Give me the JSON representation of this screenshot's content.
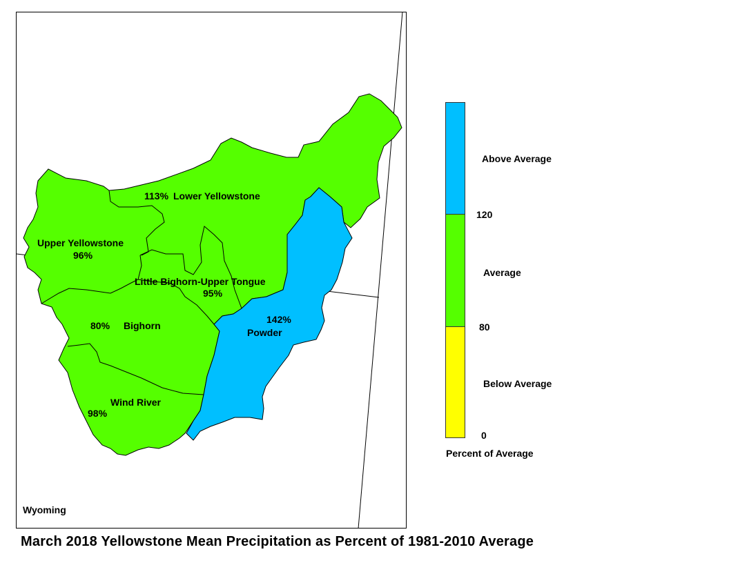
{
  "map": {
    "state_label": "Wyoming",
    "basins": [
      {
        "name": "Lower Yellowstone",
        "percent": "113%",
        "category": "Average"
      },
      {
        "name": "Upper Yellowstone",
        "percent": "96%",
        "category": "Average"
      },
      {
        "name": "Little Bighorn-Upper Tongue",
        "percent": "95%",
        "category": "Average"
      },
      {
        "name": "Bighorn",
        "percent": "80%",
        "category": "Average"
      },
      {
        "name": "Powder",
        "percent": "142%",
        "category": "Above Average"
      },
      {
        "name": "Wind River",
        "percent": "98%",
        "category": "Average"
      }
    ]
  },
  "legend": {
    "title": "Percent of Average",
    "classes": [
      {
        "label": "Above Average",
        "color": "#00bfff"
      },
      {
        "label": "Average",
        "color": "#55ff00"
      },
      {
        "label": "Below Average",
        "color": "#ffff00"
      }
    ],
    "breaks": [
      "120",
      "80",
      "0"
    ]
  },
  "title": "March 2018 Yellowstone Mean Precipitation as Percent of 1981-2010 Average"
}
